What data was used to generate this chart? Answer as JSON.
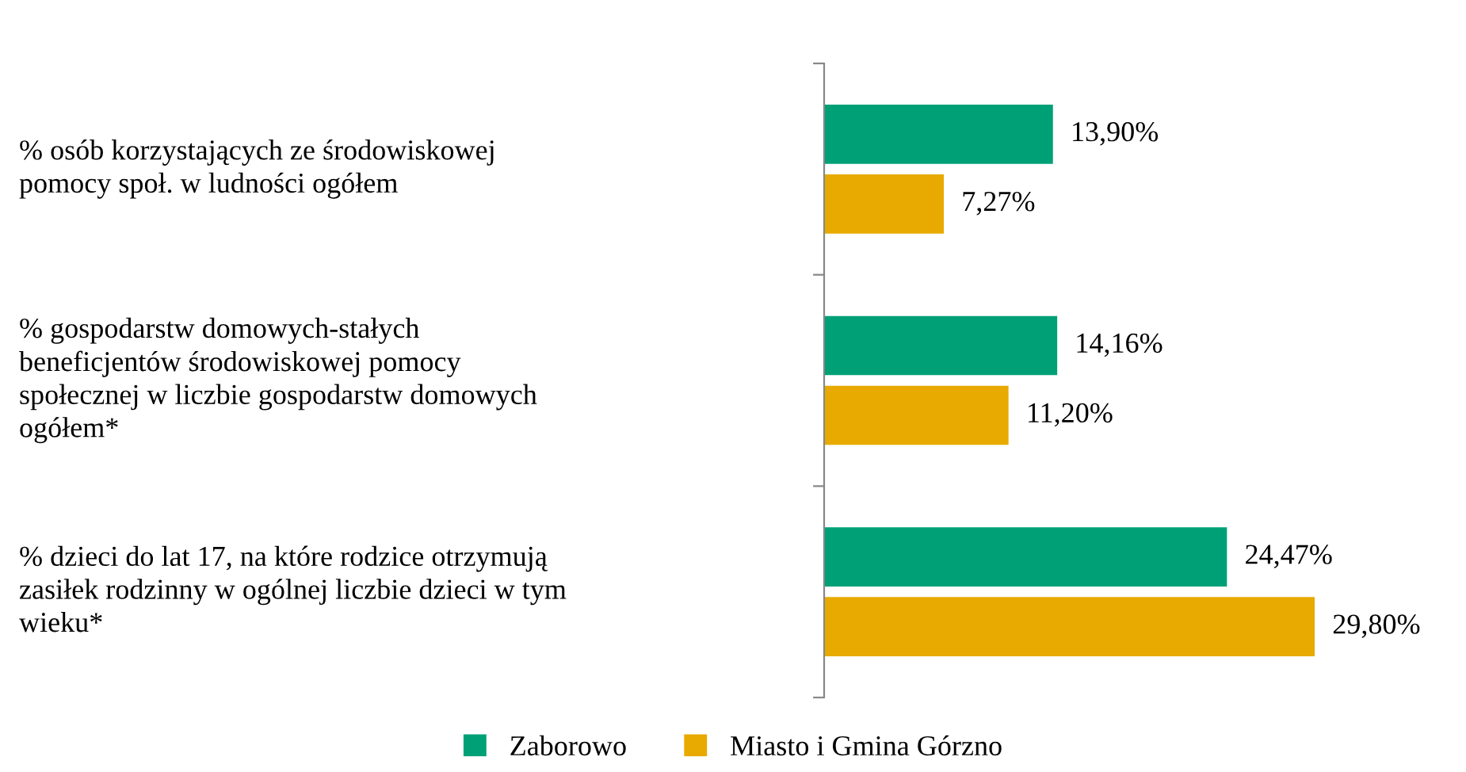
{
  "chart_data": {
    "type": "bar",
    "orientation": "horizontal",
    "categories": [
      "% osób korzystających ze środowiskowej\npomocy społ. w ludności ogółem",
      "% gospodarstw domowych-stałych\nbeneficjentów środowiskowej pomocy\nspołecznej w liczbie gospodarstw domowych\nogółem*",
      "% dzieci do lat 17, na które rodzice otrzymują\nzasiłek rodzinny w ogólnej liczbie dzieci w tym\nwieku*"
    ],
    "series": [
      {
        "name": "Zaborowo",
        "color": "#00a077",
        "values": [
          13.9,
          14.16,
          24.47
        ],
        "value_labels": [
          "13,90%",
          "14,16%",
          "24,47%"
        ]
      },
      {
        "name": "Miasto i Gmina Górzno",
        "color": "#e8a900",
        "values": [
          7.27,
          11.2,
          29.8
        ],
        "value_labels": [
          "7,27%",
          "11,20%",
          "29,80%"
        ]
      }
    ],
    "tick_labels": "y",
    "grid": false,
    "legend": "bottom"
  }
}
